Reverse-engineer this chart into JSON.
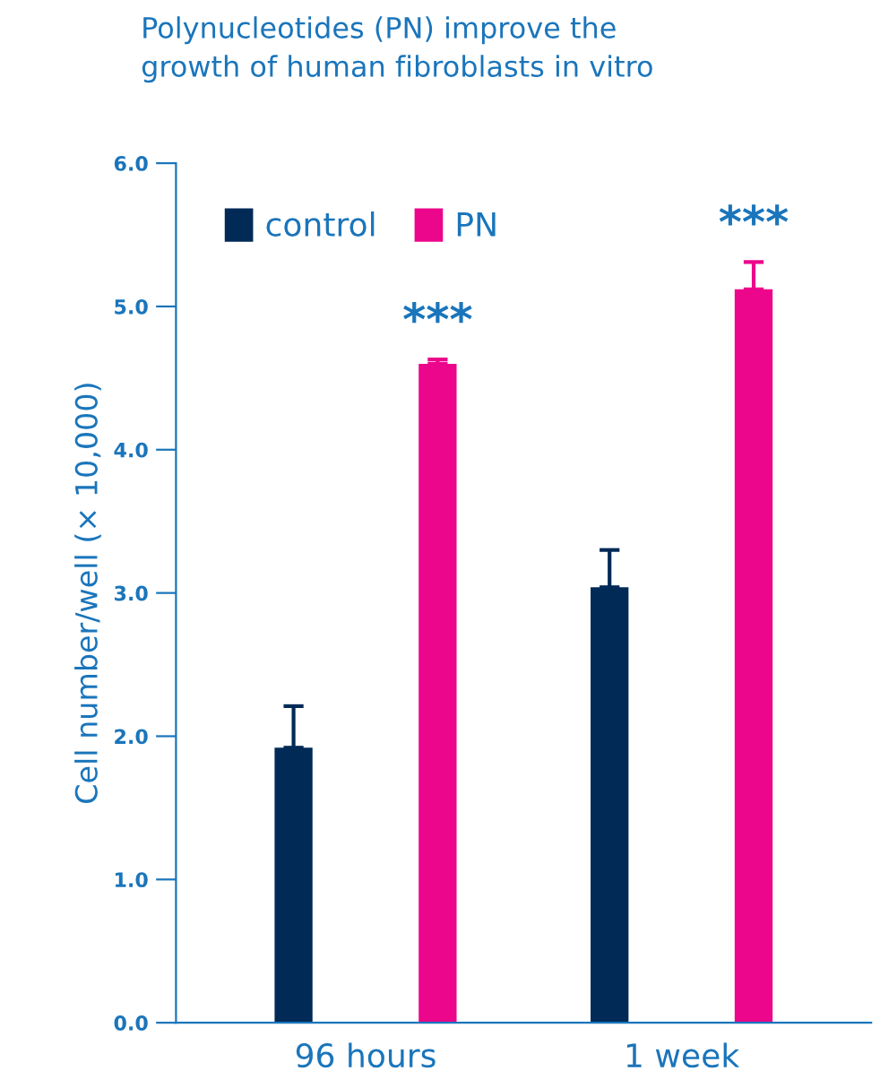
{
  "chart_data": {
    "type": "bar",
    "title": "Polynucleotides (PN) improve the\ngrowth of human fibroblasts in vitro",
    "ylabel": "Cell number/well (× 10,000)",
    "categories": [
      "96 hours",
      "1 week"
    ],
    "series": [
      {
        "name": "control",
        "color": "#012a56",
        "values": [
          1.92,
          3.04
        ],
        "errors": [
          [
            1.92,
            2.21
          ],
          [
            3.04,
            3.3
          ]
        ]
      },
      {
        "name": "PN",
        "color": "#ec068c",
        "values": [
          4.6,
          5.12
        ],
        "errors": [
          [
            4.6,
            4.63
          ],
          [
            5.12,
            5.31
          ]
        ]
      }
    ],
    "annotations": [
      "***",
      "***"
    ],
    "ylim": [
      0,
      6
    ],
    "yticks": [
      {
        "value": 0,
        "label": "0.0"
      },
      {
        "value": 1,
        "label": "1.0"
      },
      {
        "value": 2,
        "label": "2.0"
      },
      {
        "value": 3,
        "label": "3.0"
      },
      {
        "value": 4,
        "label": "4.0"
      },
      {
        "value": 5,
        "label": "5.0"
      },
      {
        "value": 6,
        "label": "6.0"
      }
    ],
    "grid": false,
    "legend": "top left"
  }
}
